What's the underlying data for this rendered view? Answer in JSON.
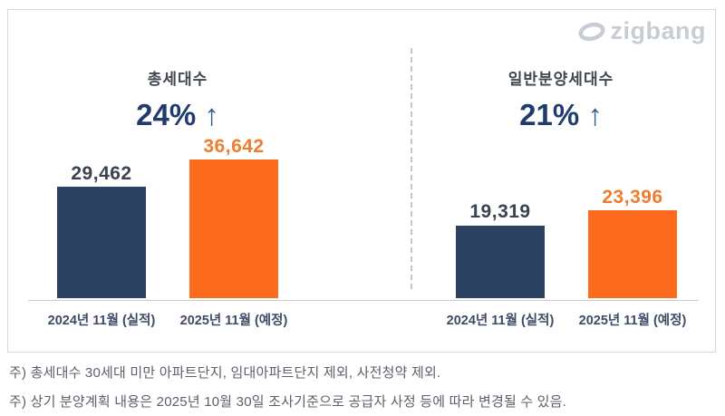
{
  "logo": {
    "text": "zigbang"
  },
  "colors": {
    "bar_navy": "#2d4163",
    "bar_orange": "#fd6c1e",
    "label_navy": "#3b4350",
    "label_orange": "#ed7d31",
    "percent_navy": "#1f3c6d",
    "arrow_blue": "#2f5f95",
    "logo_gray": "#c7ccd5"
  },
  "chart_data": [
    {
      "type": "bar",
      "title": "총세대수",
      "change_value": "24%",
      "change_arrow": "↑",
      "categories": [
        "2024년 11월 (실적)",
        "2025년 11월 (예정)"
      ],
      "values": [
        29462,
        36642
      ],
      "value_labels": [
        "29,462",
        "36,642"
      ],
      "series_colors": [
        "#2d4163",
        "#fd6c1e"
      ],
      "ylim": [
        0,
        40000
      ],
      "grid": false,
      "legend": "none"
    },
    {
      "type": "bar",
      "title": "일반분양세대수",
      "change_value": "21%",
      "change_arrow": "↑",
      "categories": [
        "2024년 11월 (실적)",
        "2025년 11월 (예정)"
      ],
      "values": [
        19319,
        23396
      ],
      "value_labels": [
        "19,319",
        "23,396"
      ],
      "series_colors": [
        "#2d4163",
        "#fd6c1e"
      ],
      "ylim": [
        0,
        40000
      ],
      "grid": false,
      "legend": "none"
    }
  ],
  "notes": [
    "주) 총세대수 30세대 미만 아파트단지, 임대아파트단지  제외, 사전청약 제외.",
    "주) 상기 분양계획 내용은 2025년 10월 30일 조사기준으로 공급자 사정 등에 따라 변경될 수 있음."
  ]
}
